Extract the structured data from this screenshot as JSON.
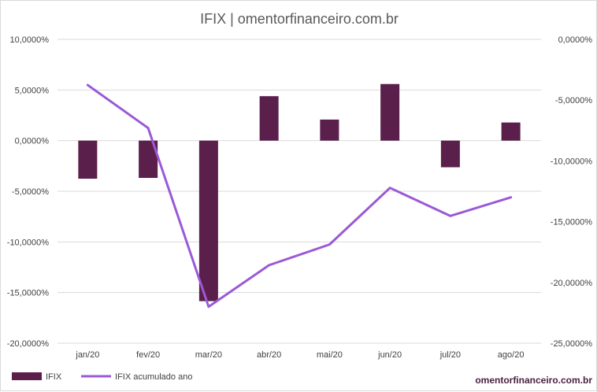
{
  "chart_data": {
    "type": "bar+line",
    "title": "IFIX | omentorfinanceiro.com.br",
    "categories": [
      "jan/20",
      "fev/20",
      "mar/20",
      "abr/20",
      "mai/20",
      "jun/20",
      "jul/20",
      "ago/20"
    ],
    "series": [
      {
        "name": "IFIX",
        "type": "bar",
        "axis": "left",
        "color": "#5b1f4b",
        "values": [
          -3.76,
          -3.68,
          -15.85,
          4.39,
          2.08,
          5.59,
          -2.63,
          1.79
        ]
      },
      {
        "name": "IFIX acumulado ano",
        "type": "line",
        "axis": "right",
        "color": "#9b59d6",
        "values": [
          -3.76,
          -7.3,
          -22.0,
          -18.58,
          -16.88,
          -12.22,
          -14.53,
          -13.0
        ]
      }
    ],
    "y_left": {
      "min": -20,
      "max": 10,
      "step": 5,
      "tick_labels": [
        "-20,0000%",
        "-15,0000%",
        "-10,0000%",
        "-5,0000%",
        "0,0000%",
        "5,0000%",
        "10,0000%"
      ]
    },
    "y_right": {
      "min": -25,
      "max": 0,
      "step": 5,
      "tick_labels": [
        "-25,0000%",
        "-20,0000%",
        "-15,0000%",
        "-10,0000%",
        "-5,0000%",
        "0,0000%"
      ]
    },
    "grid": true,
    "legend_position": "bottom-left",
    "watermark": "omentorfinanceiro.com.br"
  }
}
